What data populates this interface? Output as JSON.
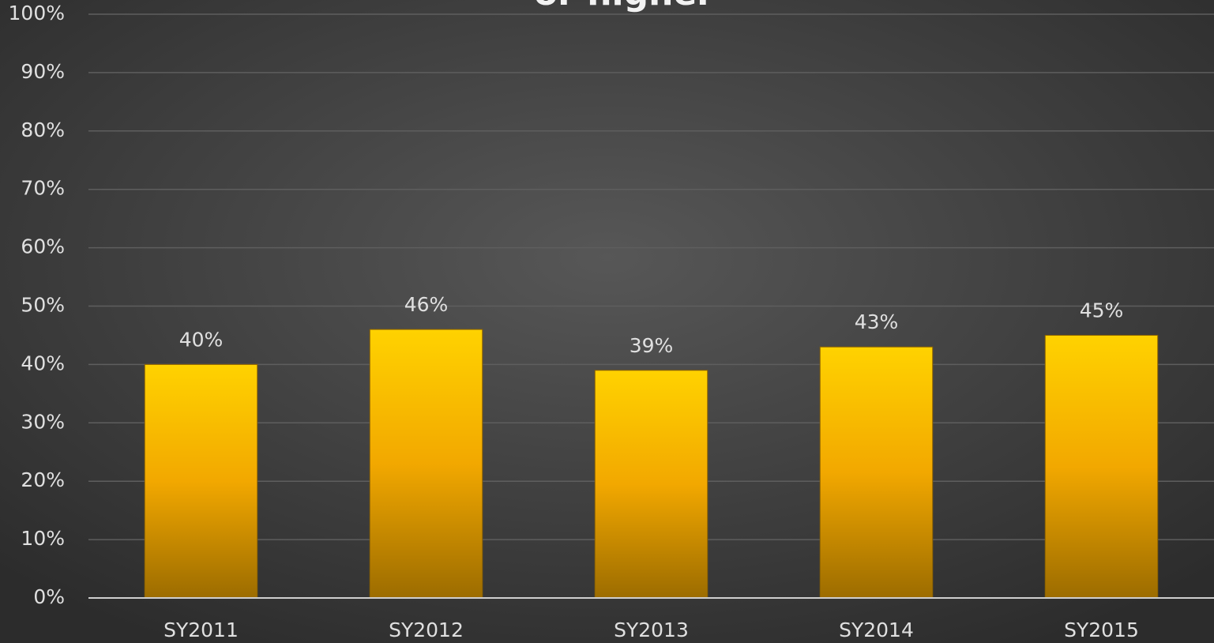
{
  "chart_data": {
    "type": "bar",
    "title": "or higher",
    "categories": [
      "SY2011",
      "SY2012",
      "SY2013",
      "SY2014",
      "SY2015"
    ],
    "values": [
      40,
      46,
      39,
      43,
      45
    ],
    "value_labels": [
      "40%",
      "46%",
      "39%",
      "43%",
      "45%"
    ],
    "color": "#ffc000",
    "ylim": [
      0,
      100
    ],
    "yticks": [
      {
        "value": 0,
        "label": "0%"
      },
      {
        "value": 10,
        "label": "10%"
      },
      {
        "value": 20,
        "label": "20%"
      },
      {
        "value": 30,
        "label": "30%"
      },
      {
        "value": 40,
        "label": "40%"
      },
      {
        "value": 50,
        "label": "50%"
      },
      {
        "value": 60,
        "label": "60%"
      },
      {
        "value": 70,
        "label": "70%"
      },
      {
        "value": 80,
        "label": "80%"
      },
      {
        "value": 90,
        "label": "90%"
      },
      {
        "value": 100,
        "label": "100%"
      }
    ],
    "grid": true
  }
}
